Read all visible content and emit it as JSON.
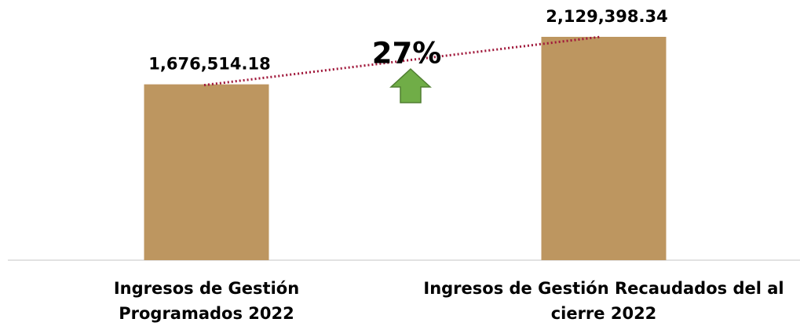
{
  "chart_data": {
    "type": "bar",
    "categories": [
      "Ingresos de Gestión Programados 2022",
      "Ingresos de Gestión Recaudados del al cierre 2022"
    ],
    "values": [
      1676514.18,
      2129398.34
    ],
    "value_labels": [
      "1,676,514.18",
      "2,129,398.34"
    ],
    "color": "#bd9660",
    "annotation": "27%",
    "trend_color": "#a0173a"
  }
}
